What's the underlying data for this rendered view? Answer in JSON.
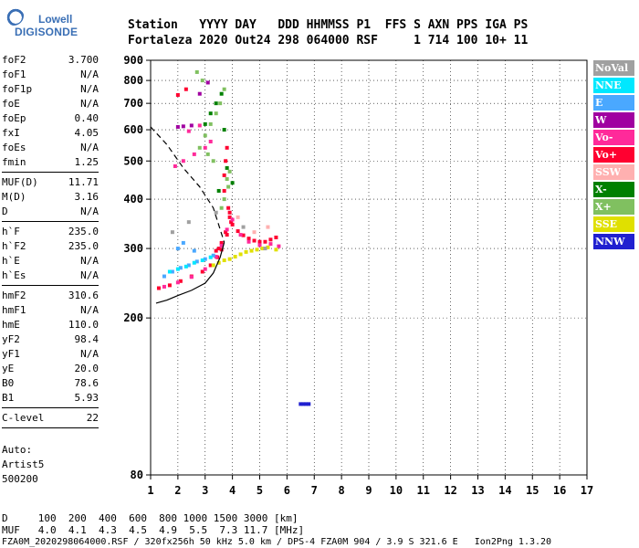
{
  "logo": {
    "line1": "Lowell",
    "line2": "DIGISONDE"
  },
  "header": {
    "line1": "Station   YYYY DAY   DDD HHMMSS P1  FFS S AXN PPS IGA PS",
    "line2": "Fortaleza 2020 Out24 298 064000 RSF     1 714 100 10+ 11"
  },
  "params": {
    "group1": [
      {
        "name": "foF2",
        "value": "3.700"
      },
      {
        "name": "foF1",
        "value": "N/A"
      },
      {
        "name": "foF1p",
        "value": "N/A"
      },
      {
        "name": "foE",
        "value": "N/A"
      },
      {
        "name": "foEp",
        "value": "0.40"
      },
      {
        "name": "fxI",
        "value": "4.05"
      },
      {
        "name": "foEs",
        "value": "N/A"
      },
      {
        "name": "fmin",
        "value": "1.25"
      }
    ],
    "group2": [
      {
        "name": "MUF(D)",
        "value": "11.71"
      },
      {
        "name": "M(D)",
        "value": "3.16"
      },
      {
        "name": "D",
        "value": "N/A"
      }
    ],
    "group3": [
      {
        "name": "h`F",
        "value": "235.0"
      },
      {
        "name": "h`F2",
        "value": "235.0"
      },
      {
        "name": "h`E",
        "value": "N/A"
      },
      {
        "name": "h`Es",
        "value": "N/A"
      }
    ],
    "group4": [
      {
        "name": "hmF2",
        "value": "310.6"
      },
      {
        "name": "hmF1",
        "value": "N/A"
      },
      {
        "name": "hmE",
        "value": "110.0"
      },
      {
        "name": "yF2",
        "value": "98.4"
      },
      {
        "name": "yF1",
        "value": "N/A"
      },
      {
        "name": "yE",
        "value": "20.0"
      },
      {
        "name": "B0",
        "value": "78.6"
      },
      {
        "name": "B1",
        "value": "5.93"
      }
    ],
    "group5": [
      {
        "name": "C-level",
        "value": "22"
      }
    ]
  },
  "auto": {
    "line1": "Auto:",
    "line2": "Artist5",
    "line3": "500200"
  },
  "legend": [
    {
      "label": "NoVal",
      "color": "#a0a0a0"
    },
    {
      "label": "NNE",
      "color": "#00e8ff"
    },
    {
      "label": "E",
      "color": "#4aa8ff"
    },
    {
      "label": "W",
      "color": "#a000a0"
    },
    {
      "label": "Vo-",
      "color": "#ff2a9a"
    },
    {
      "label": "Vo+",
      "color": "#ff0030"
    },
    {
      "label": "SSW",
      "color": "#ffb0b0"
    },
    {
      "label": "X-",
      "color": "#008000"
    },
    {
      "label": "X+",
      "color": "#80c060"
    },
    {
      "label": "SSE",
      "color": "#e0e000"
    },
    {
      "label": "NNW",
      "color": "#2020d0"
    }
  ],
  "bottom": {
    "line1": "D     100  200  400  600  800 1000 1500 3000 [km]",
    "line2": "MUF   4.0  4.1  4.3  4.5  4.9  5.5  7.3 11.7 [MHz]",
    "line3": "FZA0M_2020298064000.RSF / 320fx256h 50 kHz 5.0 km / DPS-4 FZA0M 904 / 3.9 S 321.6 E   Ion2Png 1.3.20"
  },
  "chart_data": {
    "type": "scatter",
    "title": "",
    "xlabel": "",
    "ylabel": "",
    "xlim": [
      1,
      17
    ],
    "ylim": [
      80,
      900
    ],
    "y_scale": "log",
    "x_ticks": [
      1,
      2,
      3,
      4,
      5,
      6,
      7,
      8,
      9,
      10,
      11,
      12,
      13,
      14,
      15,
      16,
      17
    ],
    "y_ticks": [
      80,
      200,
      300,
      400,
      500,
      600,
      700,
      800,
      900
    ],
    "profile": {
      "name": "",
      "color": "#000000",
      "x": [
        1.2,
        1.6,
        2.0,
        2.5,
        3.0,
        3.3,
        3.55,
        3.7
      ],
      "y": [
        218,
        222,
        228,
        235,
        245,
        260,
        285,
        311
      ]
    },
    "dashed_profile": {
      "name": "",
      "color": "#000000",
      "x": [
        1.0,
        1.6,
        2.2,
        2.8,
        3.3,
        3.7
      ],
      "y": [
        610,
        550,
        480,
        430,
        380,
        311
      ]
    },
    "traces": [
      {
        "name": "Vo+",
        "color": "#ff0030",
        "x": [
          1.3,
          1.7,
          2.1,
          2.5,
          2.9,
          3.2,
          3.45,
          3.6,
          3.75,
          3.9,
          4.0,
          4.2,
          4.4,
          4.6,
          4.8,
          5.0,
          5.2,
          5.4,
          5.6,
          3.7,
          3.7,
          3.75,
          3.8,
          3.85,
          3.9,
          3.95,
          3.8,
          3.6,
          3.5,
          3.4,
          2.0,
          2.3
        ],
        "y": [
          238,
          242,
          248,
          255,
          262,
          272,
          285,
          298,
          330,
          370,
          345,
          332,
          324,
          318,
          314,
          312,
          312,
          316,
          320,
          420,
          460,
          500,
          540,
          380,
          360,
          350,
          325,
          310,
          300,
          296,
          735,
          760
        ]
      },
      {
        "name": "Vo-",
        "color": "#ff2a9a",
        "x": [
          1.5,
          2.0,
          2.5,
          3.0,
          3.4,
          3.6,
          3.8,
          4.0,
          4.3,
          4.6,
          5.0,
          5.4,
          5.7,
          1.9,
          2.2,
          2.6,
          3.0,
          3.2,
          2.4,
          2.8
        ],
        "y": [
          240,
          246,
          254,
          266,
          286,
          305,
          335,
          355,
          325,
          312,
          306,
          308,
          304,
          485,
          500,
          520,
          540,
          560,
          595,
          615
        ]
      },
      {
        "name": "X+",
        "color": "#80c060",
        "x": [
          2.8,
          3.0,
          3.2,
          3.4,
          3.55,
          3.7,
          3.85,
          3.9,
          3.3,
          3.1,
          2.9,
          2.7,
          3.6,
          3.7,
          3.8
        ],
        "y": [
          540,
          580,
          620,
          660,
          700,
          760,
          430,
          470,
          500,
          520,
          800,
          840,
          380,
          400,
          450
        ]
      },
      {
        "name": "X-",
        "color": "#008000",
        "x": [
          3.0,
          3.2,
          3.4,
          3.6,
          3.8,
          4.0,
          3.5,
          3.7
        ],
        "y": [
          620,
          660,
          700,
          740,
          480,
          440,
          420,
          600
        ]
      },
      {
        "name": "E",
        "color": "#4aa8ff",
        "x": [
          1.5,
          1.8,
          2.1,
          2.4,
          2.7,
          3.0,
          3.3,
          2.0,
          2.2,
          2.6
        ],
        "y": [
          255,
          262,
          268,
          272,
          278,
          282,
          288,
          300,
          310,
          296
        ]
      },
      {
        "name": "NNE",
        "color": "#00e8ff",
        "x": [
          1.7,
          2.0,
          2.3,
          2.6,
          2.9,
          3.2
        ],
        "y": [
          262,
          266,
          270,
          276,
          280,
          285
        ]
      },
      {
        "name": "SSE",
        "color": "#e0e000",
        "x": [
          3.3,
          3.5,
          3.7,
          3.9,
          4.1,
          4.3,
          4.5,
          4.7,
          4.9,
          5.1,
          5.3,
          5.6
        ],
        "y": [
          272,
          276,
          280,
          282,
          286,
          290,
          294,
          296,
          298,
          300,
          302,
          298
        ]
      },
      {
        "name": "W",
        "color": "#a000a0",
        "x": [
          2.0,
          2.2,
          2.5,
          2.8,
          3.1
        ],
        "y": [
          610,
          612,
          615,
          740,
          790
        ]
      },
      {
        "name": "NoVal",
        "color": "#a0a0a0",
        "x": [
          1.8,
          2.4,
          3.4,
          4.4,
          5.2
        ],
        "y": [
          330,
          350,
          370,
          340,
          300
        ]
      },
      {
        "name": "SSW",
        "color": "#ffb0b0",
        "x": [
          4.2,
          4.8,
          5.3
        ],
        "y": [
          360,
          330,
          340
        ]
      },
      {
        "name": "NNW",
        "color": "#2020d0",
        "x": [
          6.5,
          6.6,
          6.7,
          6.8
        ],
        "y": [
          121,
          121,
          121,
          121
        ]
      }
    ]
  }
}
